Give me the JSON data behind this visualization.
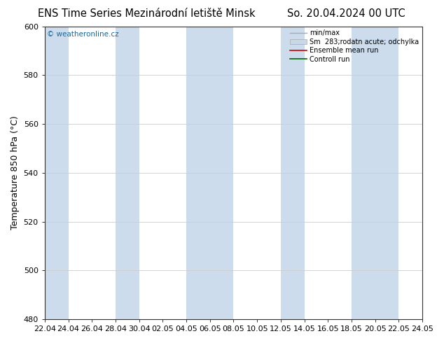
{
  "title_left": "ENS Time Series Mezinárodní letiště Minsk",
  "title_right": "So. 20.04.2024 00 UTC",
  "ylabel": "Temperature 850 hPa (°C)",
  "watermark": "© weatheronline.cz",
  "ylim": [
    480,
    600
  ],
  "yticks": [
    480,
    500,
    520,
    540,
    560,
    580,
    600
  ],
  "xtick_labels": [
    "22.04",
    "24.04",
    "26.04",
    "28.04",
    "30.04",
    "02.05",
    "04.05",
    "06.05",
    "08.05",
    "10.05",
    "12.05",
    "14.05",
    "16.05",
    "18.05",
    "20.05",
    "22.05",
    "24.05"
  ],
  "legend_entries": [
    "min/max",
    "Sm  283;rodatn acute; odchylka",
    "Ensemble mean run",
    "Controll run"
  ],
  "legend_colors": [
    "#aaaaaa",
    "#c8d8e8",
    "#cc0000",
    "#006600"
  ],
  "shaded_indices": [
    0,
    3,
    6,
    7,
    10,
    13,
    14
  ],
  "background_color": "#ffffff",
  "plot_bg_color": "#ffffff",
  "shade_color": "#ccdcec",
  "grid_color": "#cccccc",
  "title_fontsize": 10.5,
  "tick_fontsize": 8,
  "ylabel_fontsize": 9,
  "watermark_color": "#1a6699"
}
